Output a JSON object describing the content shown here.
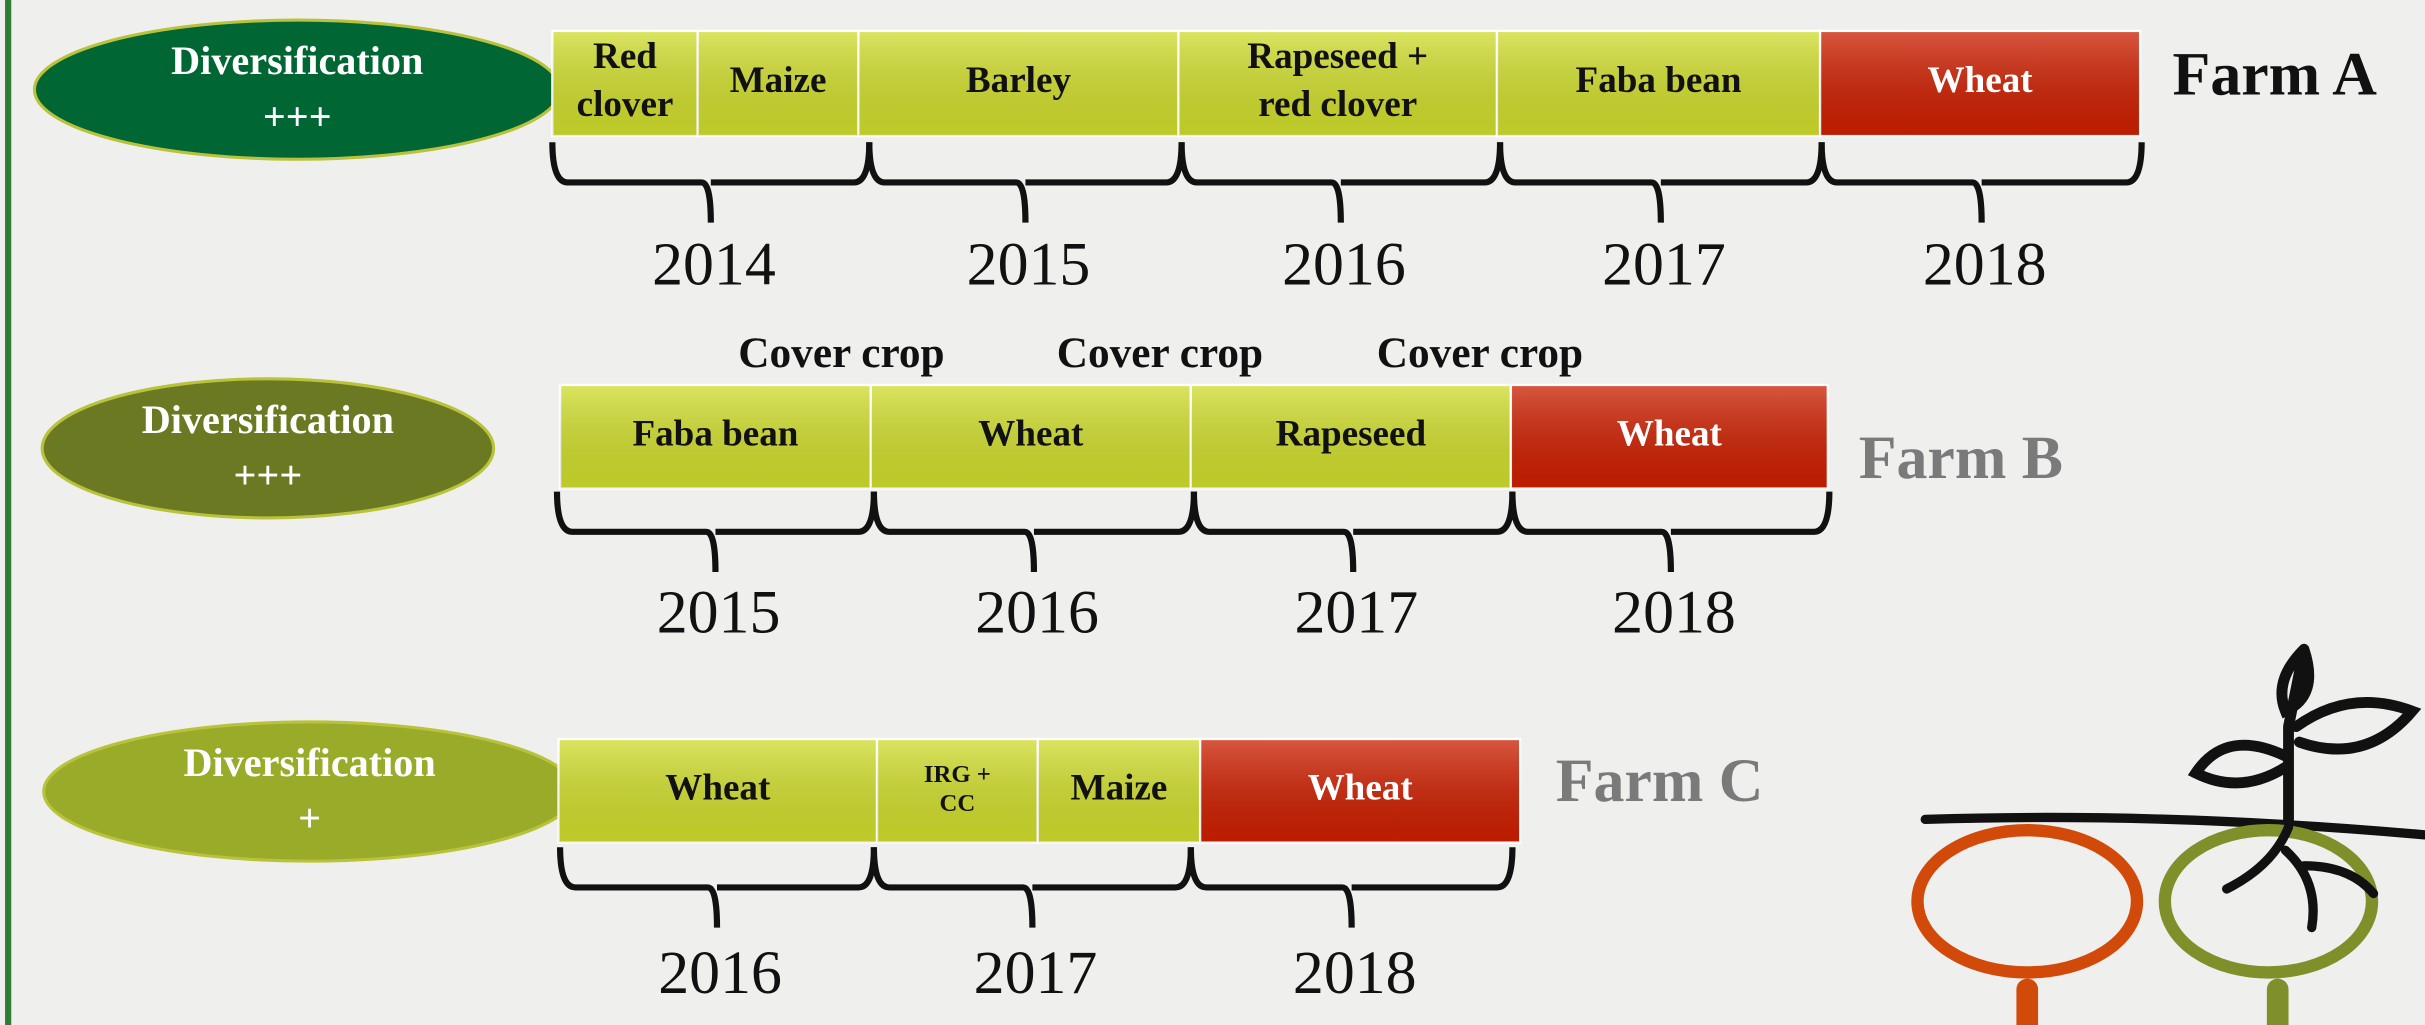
{
  "farms": [
    {
      "name": "Farm A",
      "name_color": "#111111",
      "diversification": [
        "Diversification",
        "+++"
      ],
      "ellipse_color": "#006633",
      "crops": [
        {
          "lines": [
            "Red",
            "clover"
          ],
          "color": "#cfdc2c"
        },
        {
          "lines": [
            "Maize"
          ],
          "color": "#cfdc2c"
        },
        {
          "lines": [
            "Barley"
          ],
          "color": "#cfdc2c"
        },
        {
          "lines": [
            "Rapeseed +",
            "red clover"
          ],
          "color": "#cfdc2c"
        },
        {
          "lines": [
            "Faba bean"
          ],
          "color": "#cfdc2c"
        },
        {
          "lines": [
            "Wheat"
          ],
          "color": "#cc1f00"
        }
      ],
      "years": [
        "2014",
        "2015",
        "2016",
        "2017",
        "2018"
      ],
      "cover_crops": []
    },
    {
      "name": "Farm B",
      "name_color": "#7a7a7a",
      "diversification": [
        "Diversification",
        "+++"
      ],
      "ellipse_color": "#6b7a22",
      "crops": [
        {
          "lines": [
            "Faba bean"
          ],
          "color": "#cfdc2c"
        },
        {
          "lines": [
            "Wheat"
          ],
          "color": "#cfdc2c"
        },
        {
          "lines": [
            "Rapeseed"
          ],
          "color": "#cfdc2c"
        },
        {
          "lines": [
            "Wheat"
          ],
          "color": "#cc1f00"
        }
      ],
      "years": [
        "2015",
        "2016",
        "2017",
        "2018"
      ],
      "cover_crops": [
        "Cover crop",
        "Cover crop",
        "Cover crop"
      ]
    },
    {
      "name": "Farm C",
      "name_color": "#7a7a7a",
      "diversification": [
        "Diversification",
        "+"
      ],
      "ellipse_color": "#9aab2a",
      "crops": [
        {
          "lines": [
            "Wheat"
          ],
          "color": "#cfdc2c"
        },
        {
          "lines": [
            "IRG +",
            "CC"
          ],
          "color": "#cfdc2c"
        },
        {
          "lines": [
            "Maize"
          ],
          "color": "#cfdc2c"
        },
        {
          "lines": [
            "Wheat"
          ],
          "color": "#cc1f00"
        }
      ],
      "years": [
        "2016",
        "2017",
        "2018"
      ],
      "cover_crops": []
    }
  ]
}
